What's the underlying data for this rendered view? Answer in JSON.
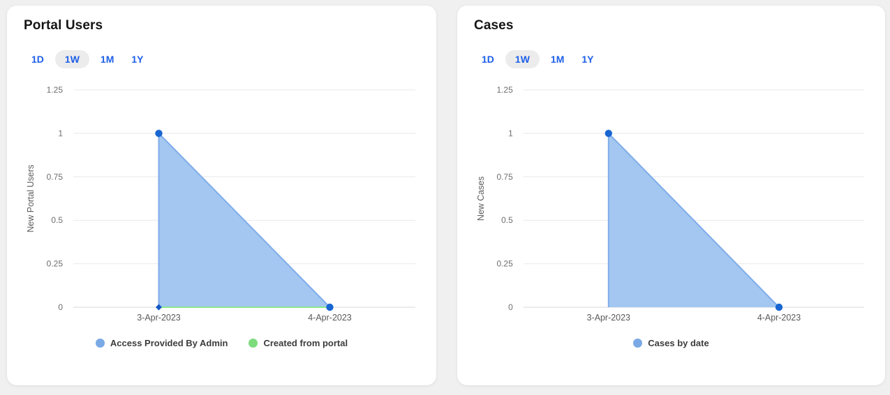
{
  "page": {
    "background": "#f0f0f1"
  },
  "cards": [
    {
      "title": "Portal Users",
      "time_ranges": [
        {
          "label": "1D",
          "selected": false
        },
        {
          "label": "1W",
          "selected": true
        },
        {
          "label": "1M",
          "selected": false
        },
        {
          "label": "1Y",
          "selected": false
        }
      ],
      "legend": [
        {
          "label": "Access Provided By Admin",
          "color": "#7aa9e6"
        },
        {
          "label": "Created from portal",
          "color": "#7ddc7d"
        }
      ]
    },
    {
      "title": "Cases",
      "time_ranges": [
        {
          "label": "1D",
          "selected": false
        },
        {
          "label": "1W",
          "selected": true
        },
        {
          "label": "1M",
          "selected": false
        },
        {
          "label": "1Y",
          "selected": false
        }
      ],
      "legend": [
        {
          "label": "Cases by date",
          "color": "#7aa9e6"
        }
      ]
    }
  ],
  "chart_data": [
    {
      "type": "area",
      "title": "Portal Users",
      "categories": [
        "3-Apr-2023",
        "4-Apr-2023"
      ],
      "series": [
        {
          "name": "Access Provided By Admin",
          "values": [
            1,
            0
          ],
          "filled": true,
          "fill": "#a3c7f0",
          "stroke": "#7fadea",
          "point_color": "#1866d2",
          "marker": "circle"
        },
        {
          "name": "Created from portal",
          "values": [
            0,
            0
          ],
          "filled": false,
          "stroke": "#8ce88c",
          "point_color": "#1557c4",
          "marker": "diamond"
        }
      ],
      "xlabel": "",
      "ylabel": "New Portal Users",
      "yticks": [
        0,
        0.25,
        0.5,
        0.75,
        1,
        1.25
      ],
      "ylim": [
        0,
        1.25
      ],
      "grid": true,
      "legend_position": "bottom"
    },
    {
      "type": "area",
      "title": "Cases",
      "categories": [
        "3-Apr-2023",
        "4-Apr-2023"
      ],
      "series": [
        {
          "name": "Cases by date",
          "values": [
            1,
            0
          ],
          "filled": true,
          "fill": "#a3c7f0",
          "stroke": "#7fadea",
          "point_color": "#1866d2",
          "marker": "circle"
        }
      ],
      "xlabel": "",
      "ylabel": "New Cases",
      "yticks": [
        0,
        0.25,
        0.5,
        0.75,
        1,
        1.25
      ],
      "ylim": [
        0,
        1.25
      ],
      "grid": true,
      "legend_position": "bottom"
    }
  ],
  "chart_style": {
    "grid_color": "#e9e9e9",
    "zero_line_color": "#d9d9d9",
    "tick_color": "#6d6d6d",
    "axis_label_color": "#5c5c5c",
    "x_label_color": "#595959"
  }
}
